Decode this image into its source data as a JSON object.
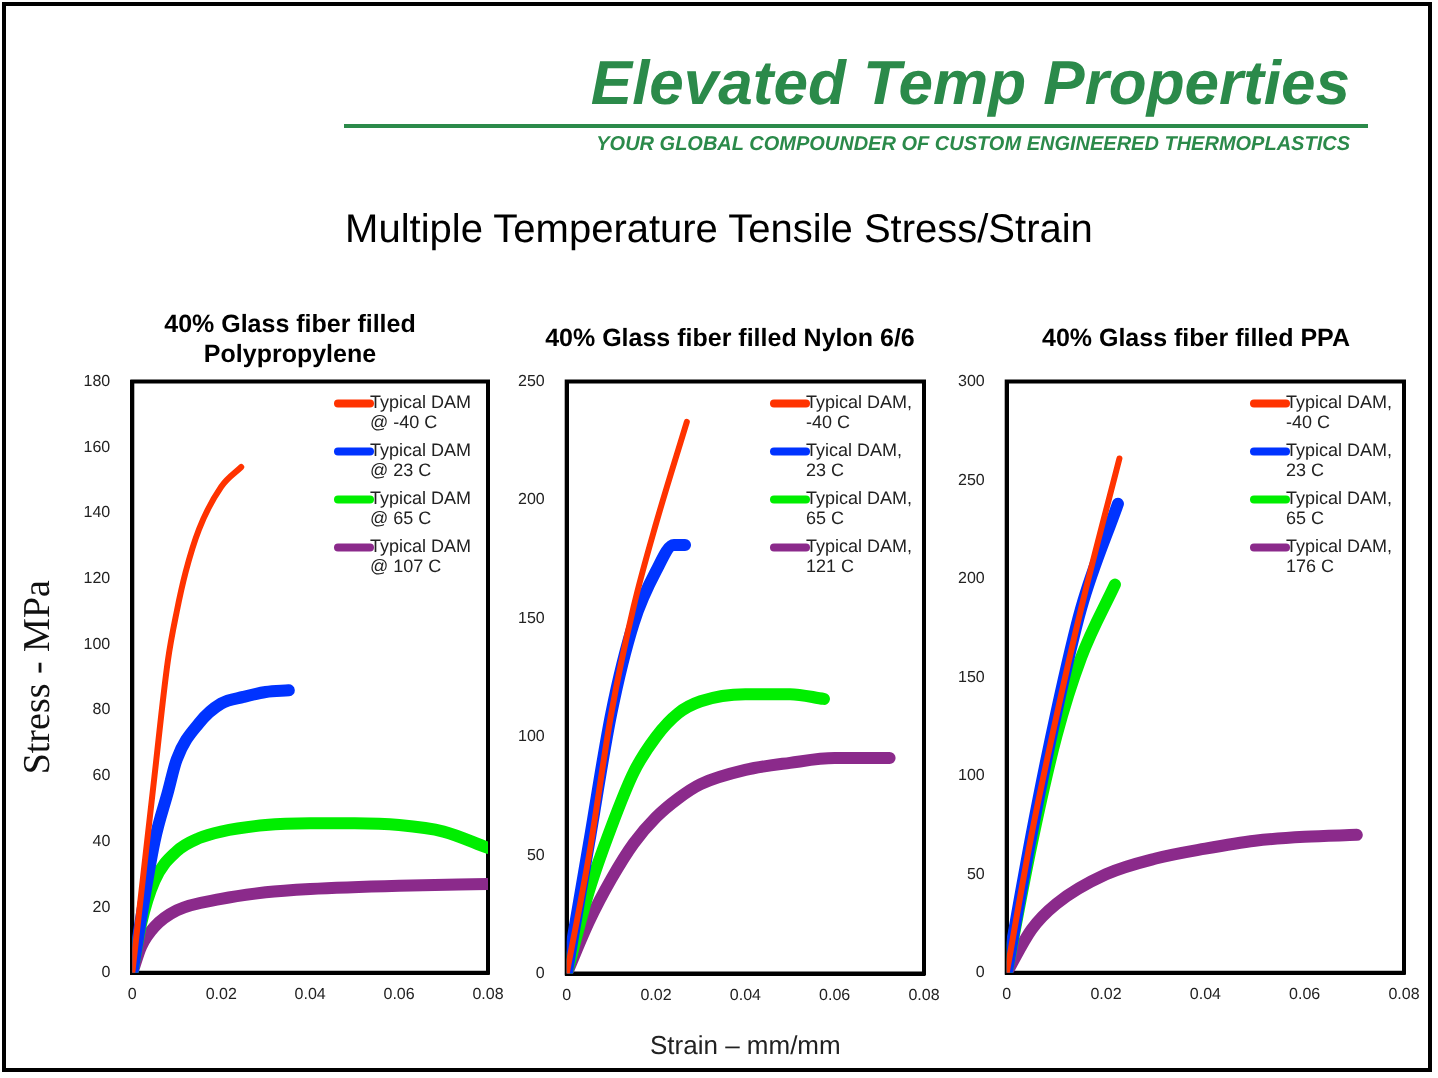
{
  "chart_data": [
    {
      "type": "line",
      "title": "40% Glass fiber filled Polypropylene",
      "ylabel": "Stress - MPa",
      "annotations": [
        "Elevated Temp Properties",
        "YOUR GLOBAL COMPOUNDER OF CUSTOM ENGINEERED THERMOPLASTICS",
        "Multiple Temperature Tensile Stress/Strain"
      ],
      "xlim": [
        0,
        0.08
      ],
      "xticks": [
        0,
        0.02,
        0.04,
        0.06,
        0.08
      ],
      "ylim": [
        0,
        180
      ],
      "yticks": [
        0,
        20,
        40,
        60,
        80,
        100,
        120,
        140,
        160,
        180
      ],
      "grid": false,
      "legend": "top right",
      "marker": "none",
      "line_style": "solid",
      "series": [
        {
          "name": "Typical DAM @ -40 C",
          "color": "#ff3300",
          "x": [
            0,
            0.005,
            0.008,
            0.01,
            0.012,
            0.015,
            0.02,
            0.0245
          ],
          "values": [
            0,
            60,
            95,
            110,
            122,
            135,
            148,
            154
          ]
        },
        {
          "name": "Typical DAM @ 23 C",
          "color": "#0033ff",
          "x": [
            0,
            0.005,
            0.008,
            0.01,
            0.015,
            0.02,
            0.025,
            0.03,
            0.0352
          ],
          "values": [
            0,
            40,
            55,
            65,
            76,
            82,
            84,
            85.5,
            86
          ]
        },
        {
          "name": "Typical DAM @ 65 C",
          "color": "#00ee00",
          "x": [
            0,
            0.002,
            0.005,
            0.01,
            0.015,
            0.02,
            0.03,
            0.04,
            0.05,
            0.06,
            0.07,
            0.08
          ],
          "values": [
            0,
            15,
            28,
            37,
            41,
            43,
            45,
            45.5,
            45.5,
            45,
            43,
            38
          ]
        },
        {
          "name": "Typical DAM @ 107 C",
          "color": "#8b2a8b",
          "x": [
            0,
            0.002,
            0.005,
            0.01,
            0.02,
            0.03,
            0.04,
            0.06,
            0.08
          ],
          "values": [
            0,
            8,
            14,
            19,
            22.5,
            24.5,
            25.5,
            26.5,
            27
          ]
        }
      ]
    },
    {
      "type": "line",
      "title": "40% Glass fiber filled Nylon 6/6",
      "xlabel": "Strain – mm/mm",
      "xlim": [
        0,
        0.08
      ],
      "xticks": [
        0,
        0.02,
        0.04,
        0.06,
        0.08
      ],
      "ylim": [
        0,
        250
      ],
      "yticks": [
        0,
        50,
        100,
        150,
        200,
        250
      ],
      "grid": false,
      "legend": "top right",
      "marker": "none",
      "line_style": "solid",
      "series": [
        {
          "name": "Typical DAM, -40 C",
          "color": "#ff3300",
          "x": [
            0,
            0.005,
            0.01,
            0.015,
            0.02,
            0.0269
          ],
          "values": [
            0,
            50,
            110,
            155,
            190,
            233
          ]
        },
        {
          "name": "Tyical DAM, 23 C",
          "color": "#0033ff",
          "x": [
            0,
            0.005,
            0.01,
            0.015,
            0.02,
            0.024,
            0.0265
          ],
          "values": [
            0,
            55,
            110,
            148,
            170,
            181,
            181
          ]
        },
        {
          "name": "Typical DAM, 65 C",
          "color": "#00ee00",
          "x": [
            0,
            0.005,
            0.01,
            0.015,
            0.02,
            0.025,
            0.03,
            0.04,
            0.05,
            0.0576
          ],
          "values": [
            0,
            35,
            62,
            85,
            100,
            110,
            115,
            118,
            118,
            116
          ]
        },
        {
          "name": "Typical DAM, 121 C",
          "color": "#8b2a8b",
          "x": [
            0,
            0.005,
            0.01,
            0.015,
            0.02,
            0.025,
            0.03,
            0.04,
            0.05,
            0.06,
            0.0723
          ],
          "values": [
            0,
            22,
            40,
            55,
            66,
            74,
            80,
            86,
            89,
            91,
            91
          ]
        }
      ]
    },
    {
      "type": "line",
      "title": "40% Glass fiber filled PPA",
      "xlim": [
        0,
        0.08
      ],
      "xticks": [
        0,
        0.02,
        0.04,
        0.06,
        0.08
      ],
      "ylim": [
        0,
        300
      ],
      "yticks": [
        0,
        50,
        100,
        150,
        200,
        250,
        300
      ],
      "grid": false,
      "legend": "top right",
      "marker": "none",
      "line_style": "solid",
      "series": [
        {
          "name": "Typical DAM, -40 C",
          "color": "#ff3300",
          "x": [
            0,
            0.005,
            0.01,
            0.015,
            0.0227
          ],
          "values": [
            0,
            70,
            130,
            185,
            261
          ]
        },
        {
          "name": "Typical DAM, 23 C",
          "color": "#0033ff",
          "x": [
            0,
            0.005,
            0.01,
            0.015,
            0.0224
          ],
          "values": [
            0,
            70,
            132,
            185,
            238
          ]
        },
        {
          "name": "Typical DAM, 65 C",
          "color": "#00ee00",
          "x": [
            0,
            0.005,
            0.01,
            0.015,
            0.0218
          ],
          "values": [
            0,
            65,
            120,
            160,
            197
          ]
        },
        {
          "name": "Typical DAM, 176 C",
          "color": "#8b2a8b",
          "x": [
            0,
            0.005,
            0.01,
            0.02,
            0.03,
            0.04,
            0.05,
            0.06,
            0.0705
          ],
          "values": [
            0,
            22,
            35,
            50,
            58,
            63,
            67,
            69,
            70
          ]
        }
      ]
    }
  ]
}
